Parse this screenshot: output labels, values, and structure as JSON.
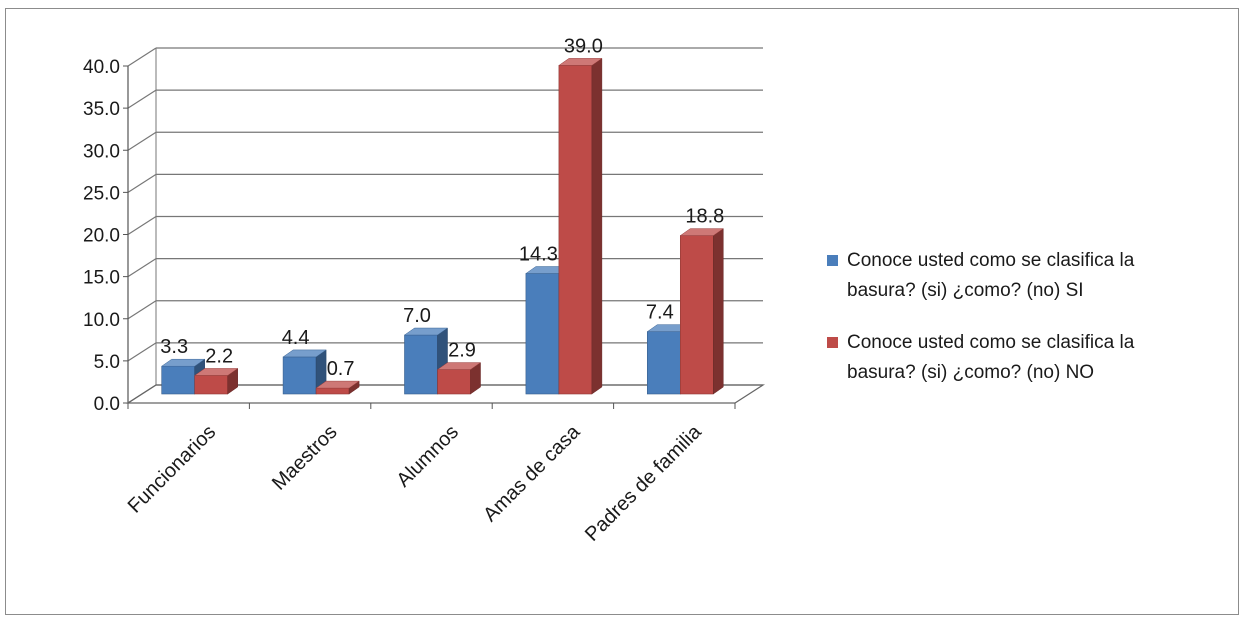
{
  "chart_data": {
    "type": "bar",
    "style": "3d-clustered-column",
    "title": "",
    "xlabel": "",
    "ylabel": "",
    "categories": [
      "Funcionarios",
      "Maestros",
      "Alumnos",
      "Amas de casa",
      "Padres de familia"
    ],
    "ylim": [
      0,
      40
    ],
    "yticks": [
      "0.0",
      "5.0",
      "10.0",
      "15.0",
      "20.0",
      "25.0",
      "30.0",
      "35.0",
      "40.0"
    ],
    "grid": true,
    "legend_position": "right",
    "series": [
      {
        "name_lines": [
          "Conoce usted como se clasifica la",
          "basura? (si) ¿como?  (no) SI"
        ],
        "color": "#4a7ebb",
        "values": [
          3.3,
          4.4,
          7.0,
          14.3,
          7.4
        ],
        "labels": [
          "3.3",
          "4.4",
          "7.0",
          "14.3",
          "7.4"
        ]
      },
      {
        "name_lines": [
          "Conoce usted como se clasifica la",
          "basura? (si) ¿como?  (no) NO"
        ],
        "color": "#be4b48",
        "values": [
          2.2,
          0.7,
          2.9,
          39.0,
          18.8
        ],
        "labels": [
          "2.2",
          "0.7",
          "2.9",
          "39.0",
          "18.8"
        ]
      }
    ]
  }
}
